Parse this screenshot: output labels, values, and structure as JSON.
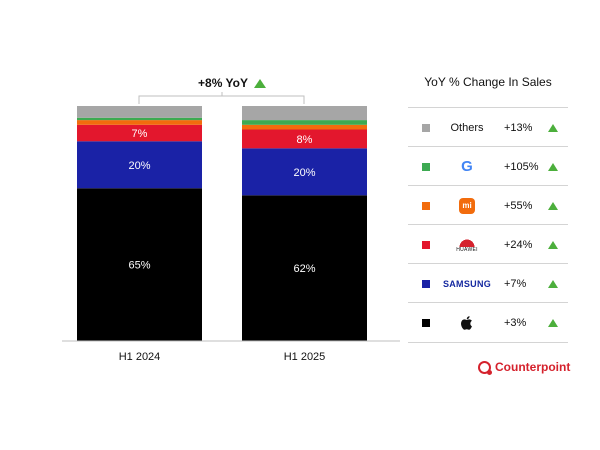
{
  "chart_data": {
    "type": "bar",
    "stacked": true,
    "categories": [
      "H1 2024",
      "H1 2025"
    ],
    "series": [
      {
        "name": "Apple",
        "color": "#000000",
        "values": [
          65,
          62
        ]
      },
      {
        "name": "Samsung",
        "color": "#1a22a6",
        "values": [
          20,
          20
        ]
      },
      {
        "name": "Huawei",
        "color": "#e3172d",
        "values": [
          7,
          8
        ]
      },
      {
        "name": "Xiaomi",
        "color": "#f26c0d",
        "values": [
          2,
          2
        ]
      },
      {
        "name": "Google",
        "color": "#3daa52",
        "values": [
          1,
          2
        ]
      },
      {
        "name": "Others",
        "color": "#a6a6a6",
        "values": [
          5,
          6
        ]
      }
    ],
    "data_labels": [
      {
        "series": "Apple",
        "labels": [
          "65%",
          "62%"
        ]
      },
      {
        "series": "Samsung",
        "labels": [
          "20%",
          "20%"
        ]
      },
      {
        "series": "Huawei",
        "labels": [
          "7%",
          "8%"
        ]
      }
    ],
    "annotation": "+8% YoY",
    "legend_title": "YoY % Change In Sales",
    "legend": [
      {
        "label": "Others",
        "icon": "text-others",
        "color": "#a6a6a6",
        "change": "+13%"
      },
      {
        "label": "",
        "icon": "google-icon",
        "color": "#3daa52",
        "change": "+105%"
      },
      {
        "label": "mi",
        "icon": "xiaomi-icon",
        "color": "#f26c0d",
        "change": "+55%"
      },
      {
        "label": "HUAWEI",
        "icon": "huawei-icon",
        "color": "#e3172d",
        "change": "+24%"
      },
      {
        "label": "SAMSUNG",
        "icon": "samsung-icon",
        "color": "#1a22a6",
        "change": "+7%"
      },
      {
        "label": "",
        "icon": "apple-icon",
        "color": "#000000",
        "change": "+3%"
      }
    ],
    "trend_color": "#4caf3c"
  },
  "branding": {
    "name": "Counterpoint",
    "color": "#d5222d"
  },
  "google_letter": "G"
}
